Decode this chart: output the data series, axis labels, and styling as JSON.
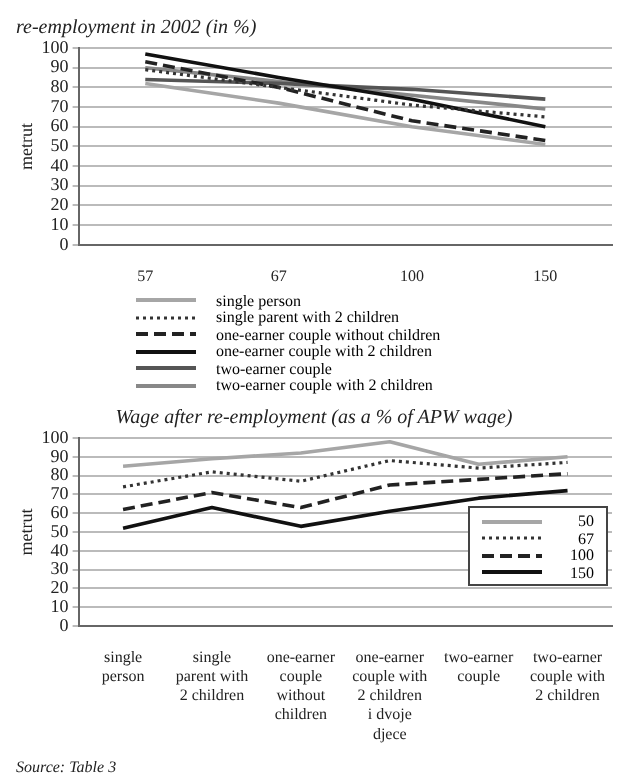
{
  "chart_data": [
    {
      "type": "line",
      "title": "re-employment in 2002 (in %)",
      "ylabel": "metrut",
      "categories": [
        "57",
        "67",
        "100",
        "150"
      ],
      "ylim": [
        0,
        100
      ],
      "yticks": [
        0,
        10,
        20,
        30,
        40,
        50,
        60,
        70,
        80,
        90,
        100
      ],
      "grid": "y",
      "legend": "bottom",
      "marker": "none",
      "series": [
        {
          "name": "single person",
          "color": "#a6a6a6",
          "line_style": "solid",
          "values": [
            82,
            72,
            60,
            51
          ]
        },
        {
          "name": "single parent with 2 children",
          "color": "#333333",
          "line_style": "dotted",
          "values": [
            89,
            80,
            71,
            65
          ]
        },
        {
          "name": "one-earner couple without children",
          "color": "#222222",
          "line_style": "dashed",
          "values": [
            93,
            80,
            63,
            53
          ]
        },
        {
          "name": "one-earner couple with 2 children",
          "color": "#111111",
          "line_style": "solid",
          "values": [
            97,
            85,
            74,
            60
          ]
        },
        {
          "name": "two-earner couple",
          "color": "#555555",
          "line_style": "solid",
          "values": [
            84,
            82,
            79,
            74
          ]
        },
        {
          "name": "two-earner couple with 2 children",
          "color": "#888888",
          "line_style": "solid",
          "values": [
            90,
            83,
            76,
            69
          ]
        }
      ]
    },
    {
      "type": "line",
      "title": "Wage after re-employment (as a % of APW wage)",
      "ylabel": "metrut",
      "categories": [
        "single person",
        "single parent with 2 children",
        "one-earner couple without children",
        "one-earner couple with 2 children i dvoje djece",
        "two-earner couple",
        "two-earner couple with 2 children"
      ],
      "ylim": [
        0,
        100
      ],
      "yticks": [
        0,
        10,
        20,
        30,
        40,
        50,
        60,
        70,
        80,
        90,
        100
      ],
      "grid": "y",
      "legend": "bottom right",
      "marker": "none",
      "annotations": [
        "Source: Table 3"
      ],
      "series": [
        {
          "name": "50",
          "color": "#a6a6a6",
          "line_style": "solid",
          "values": [
            85,
            89,
            92,
            98,
            86,
            90
          ]
        },
        {
          "name": "67",
          "color": "#333333",
          "line_style": "dotted",
          "values": [
            74,
            82,
            77,
            88,
            84,
            87
          ]
        },
        {
          "name": "100",
          "color": "#222222",
          "line_style": "dashed",
          "values": [
            62,
            71,
            63,
            75,
            78,
            81
          ]
        },
        {
          "name": "150",
          "color": "#111111",
          "line_style": "solid",
          "values": [
            52,
            63,
            53,
            61,
            68,
            72
          ]
        }
      ]
    }
  ]
}
